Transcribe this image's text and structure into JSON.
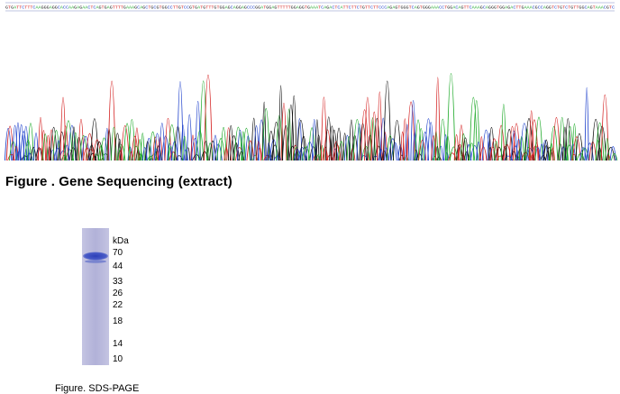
{
  "sequencing": {
    "caption": "Figure . Gene Sequencing (extract)",
    "colors": {
      "A": "#1faa2a",
      "C": "#2244cc",
      "G": "#111111",
      "T": "#d42222"
    },
    "base_string": "GTGATTCTTTCAAGGGAGGCACCAAGAGAACTCAGTGAGTTTTGAAAGCAGCTGCGTGGCCTTGTCCGTGATGTTTGTGGAGCAGGAGCCCGGATGGAGTTTTTGGAGGTGAAATCAGACTCATTCTTCTGTTCTTCCCAGAGTGGGTCAGTGGGAAACCTGGACAGTTCAAAGCAGGGTGGAGACTTGAAACGCCAGGTCTGTCTGTTGGCAGTAAACGTC"
  },
  "gel": {
    "unit_label": "kDa",
    "markers": [
      "70",
      "44",
      "33",
      "26",
      "22",
      "18",
      "14",
      "10"
    ],
    "caption": "Figure. SDS-PAGE",
    "lane_color": "#b6b6dc",
    "band_color": "#3c4fc4"
  }
}
